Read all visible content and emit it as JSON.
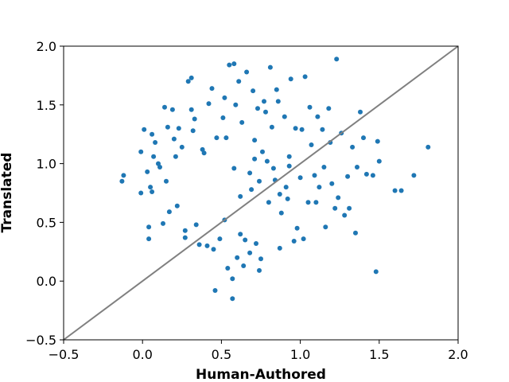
{
  "chart_data": {
    "type": "scatter",
    "title": "",
    "xlabel": "Human-Authored",
    "ylabel": "Translated",
    "xlim": [
      -0.5,
      2.0
    ],
    "ylim": [
      -0.5,
      2.0
    ],
    "xticks": [
      -0.5,
      0.0,
      0.5,
      1.0,
      1.5,
      2.0
    ],
    "yticks": [
      -0.5,
      0.0,
      0.5,
      1.0,
      1.5,
      2.0
    ],
    "xtick_labels": [
      "−0.5",
      "0.0",
      "0.5",
      "1.0",
      "1.5",
      "2.0"
    ],
    "ytick_labels": [
      "−0.5",
      "0.0",
      "0.5",
      "1.0",
      "1.5",
      "2.0"
    ],
    "grid": false,
    "point_color": "#1f77b4",
    "reference_line": {
      "kind": "identity",
      "from": [
        -0.5,
        -0.5
      ],
      "to": [
        2.0,
        2.0
      ],
      "color": "#808080"
    },
    "points_approx_count": 1000,
    "points": [
      [
        -0.13,
        0.85
      ],
      [
        -0.12,
        0.9
      ],
      [
        -0.01,
        1.1
      ],
      [
        -0.01,
        0.75
      ],
      [
        0.01,
        1.29
      ],
      [
        0.03,
        0.93
      ],
      [
        0.04,
        0.46
      ],
      [
        0.04,
        0.36
      ],
      [
        0.05,
        0.8
      ],
      [
        0.06,
        0.76
      ],
      [
        0.06,
        1.25
      ],
      [
        0.07,
        1.06
      ],
      [
        0.08,
        1.18
      ],
      [
        0.1,
        1.0
      ],
      [
        0.11,
        0.97
      ],
      [
        0.13,
        0.49
      ],
      [
        0.14,
        1.48
      ],
      [
        0.15,
        0.85
      ],
      [
        0.16,
        1.31
      ],
      [
        0.17,
        0.59
      ],
      [
        0.19,
        1.46
      ],
      [
        0.2,
        1.21
      ],
      [
        0.21,
        1.06
      ],
      [
        0.22,
        0.64
      ],
      [
        0.23,
        1.3
      ],
      [
        0.25,
        1.14
      ],
      [
        0.27,
        0.43
      ],
      [
        0.27,
        0.37
      ],
      [
        0.29,
        1.7
      ],
      [
        0.31,
        1.73
      ],
      [
        0.31,
        1.46
      ],
      [
        0.32,
        1.28
      ],
      [
        0.33,
        1.38
      ],
      [
        0.34,
        0.48
      ],
      [
        0.36,
        0.31
      ],
      [
        0.38,
        1.12
      ],
      [
        0.39,
        1.09
      ],
      [
        0.41,
        0.3
      ],
      [
        0.42,
        1.51
      ],
      [
        0.44,
        1.64
      ],
      [
        0.45,
        0.27
      ],
      [
        0.47,
        1.22
      ],
      [
        0.49,
        0.36
      ],
      [
        0.51,
        1.39
      ],
      [
        0.52,
        1.56
      ],
      [
        0.53,
        1.22
      ],
      [
        0.54,
        0.11
      ],
      [
        0.55,
        1.84
      ],
      [
        0.57,
        -0.15
      ],
      [
        0.57,
        0.02
      ],
      [
        0.58,
        1.85
      ],
      [
        0.59,
        1.5
      ],
      [
        0.6,
        0.2
      ],
      [
        0.61,
        1.7
      ],
      [
        0.62,
        0.4
      ],
      [
        0.63,
        1.35
      ],
      [
        0.64,
        0.13
      ],
      [
        0.65,
        0.35
      ],
      [
        0.66,
        1.78
      ],
      [
        0.68,
        0.24
      ],
      [
        0.7,
        1.62
      ],
      [
        0.71,
        1.04
      ],
      [
        0.72,
        0.32
      ],
      [
        0.73,
        1.47
      ],
      [
        0.74,
        0.09
      ],
      [
        0.75,
        0.19
      ],
      [
        0.77,
        1.53
      ],
      [
        0.78,
        1.44
      ],
      [
        0.8,
        0.67
      ],
      [
        0.81,
        1.82
      ],
      [
        0.82,
        1.31
      ],
      [
        0.84,
        0.86
      ],
      [
        0.85,
        1.63
      ],
      [
        0.86,
        1.53
      ],
      [
        0.87,
        0.28
      ],
      [
        0.88,
        0.58
      ],
      [
        0.9,
        1.4
      ],
      [
        0.91,
        0.8
      ],
      [
        0.92,
        0.7
      ],
      [
        0.93,
        1.06
      ],
      [
        0.94,
        1.72
      ],
      [
        0.96,
        0.34
      ],
      [
        0.97,
        1.3
      ],
      [
        0.98,
        0.45
      ],
      [
        1.0,
        0.88
      ],
      [
        1.01,
        1.29
      ],
      [
        1.02,
        0.36
      ],
      [
        1.03,
        1.74
      ],
      [
        1.05,
        0.67
      ],
      [
        1.06,
        1.48
      ],
      [
        1.07,
        1.16
      ],
      [
        1.09,
        0.9
      ],
      [
        1.1,
        0.67
      ],
      [
        1.11,
        1.4
      ],
      [
        1.12,
        0.8
      ],
      [
        1.14,
        1.29
      ],
      [
        1.15,
        0.97
      ],
      [
        1.16,
        0.46
      ],
      [
        1.18,
        1.47
      ],
      [
        1.19,
        1.18
      ],
      [
        1.2,
        0.83
      ],
      [
        1.22,
        0.62
      ],
      [
        1.23,
        1.89
      ],
      [
        1.24,
        0.71
      ],
      [
        1.26,
        1.26
      ],
      [
        1.28,
        0.56
      ],
      [
        1.3,
        0.89
      ],
      [
        1.31,
        0.62
      ],
      [
        1.33,
        1.14
      ],
      [
        1.35,
        0.41
      ],
      [
        1.36,
        0.97
      ],
      [
        1.38,
        1.44
      ],
      [
        1.4,
        1.22
      ],
      [
        1.42,
        0.91
      ],
      [
        1.46,
        0.9
      ],
      [
        1.48,
        0.08
      ],
      [
        1.49,
        1.19
      ],
      [
        1.5,
        1.02
      ],
      [
        1.6,
        0.77
      ],
      [
        1.64,
        0.77
      ],
      [
        1.72,
        0.9
      ],
      [
        1.81,
        1.14
      ],
      [
        0.46,
        -0.08
      ],
      [
        0.52,
        0.52
      ],
      [
        0.62,
        0.72
      ],
      [
        0.68,
        0.92
      ],
      [
        0.74,
        0.85
      ],
      [
        0.79,
        1.02
      ],
      [
        0.83,
        0.96
      ],
      [
        0.76,
        1.1
      ],
      [
        0.69,
        0.78
      ],
      [
        0.87,
        0.74
      ],
      [
        0.93,
        0.98
      ],
      [
        0.58,
        0.96
      ],
      [
        0.71,
        1.2
      ]
    ]
  }
}
